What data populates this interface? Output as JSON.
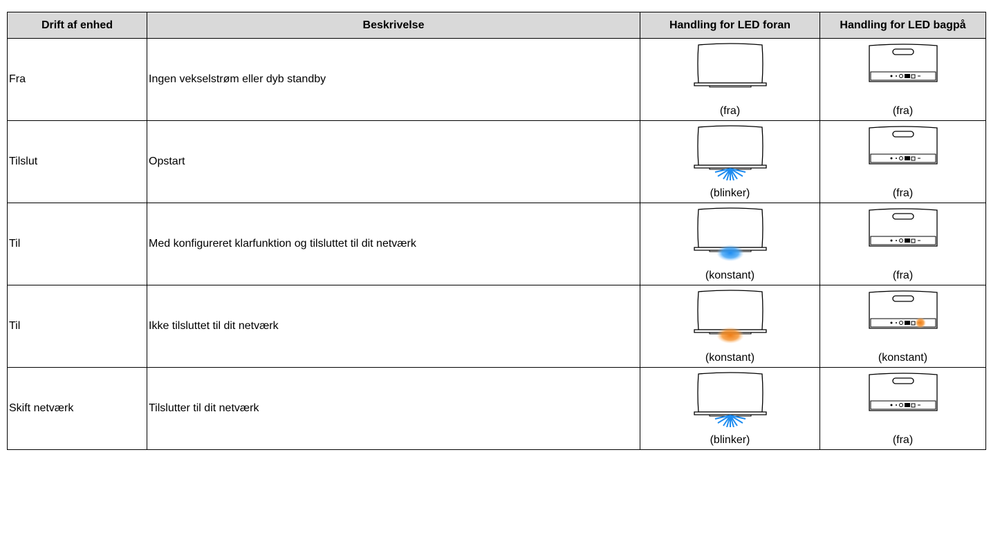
{
  "table": {
    "header": [
      "Drift af enhed",
      "Beskrivelse",
      "Handling for LED foran",
      "Handling for LED bagpå"
    ],
    "rows": [
      [
        "Fra",
        "Ingen vekselstrøm eller dyb standby",
        "(fra)",
        "(fra)"
      ],
      [
        "Tilslut",
        "Opstart",
        "(blinker)",
        "(fra)"
      ],
      [
        "Til",
        "Med konfigureret klarfunktion og tilsluttet til dit netværk",
        "(konstant)",
        "(fra)"
      ],
      [
        "Til",
        "Ikke tilsluttet til dit netværk",
        "(konstant)",
        "(konstant)"
      ],
      [
        "Skift netværk",
        "Tilslutter til dit netværk",
        "(blinker)",
        "(fra)"
      ]
    ]
  }
}
